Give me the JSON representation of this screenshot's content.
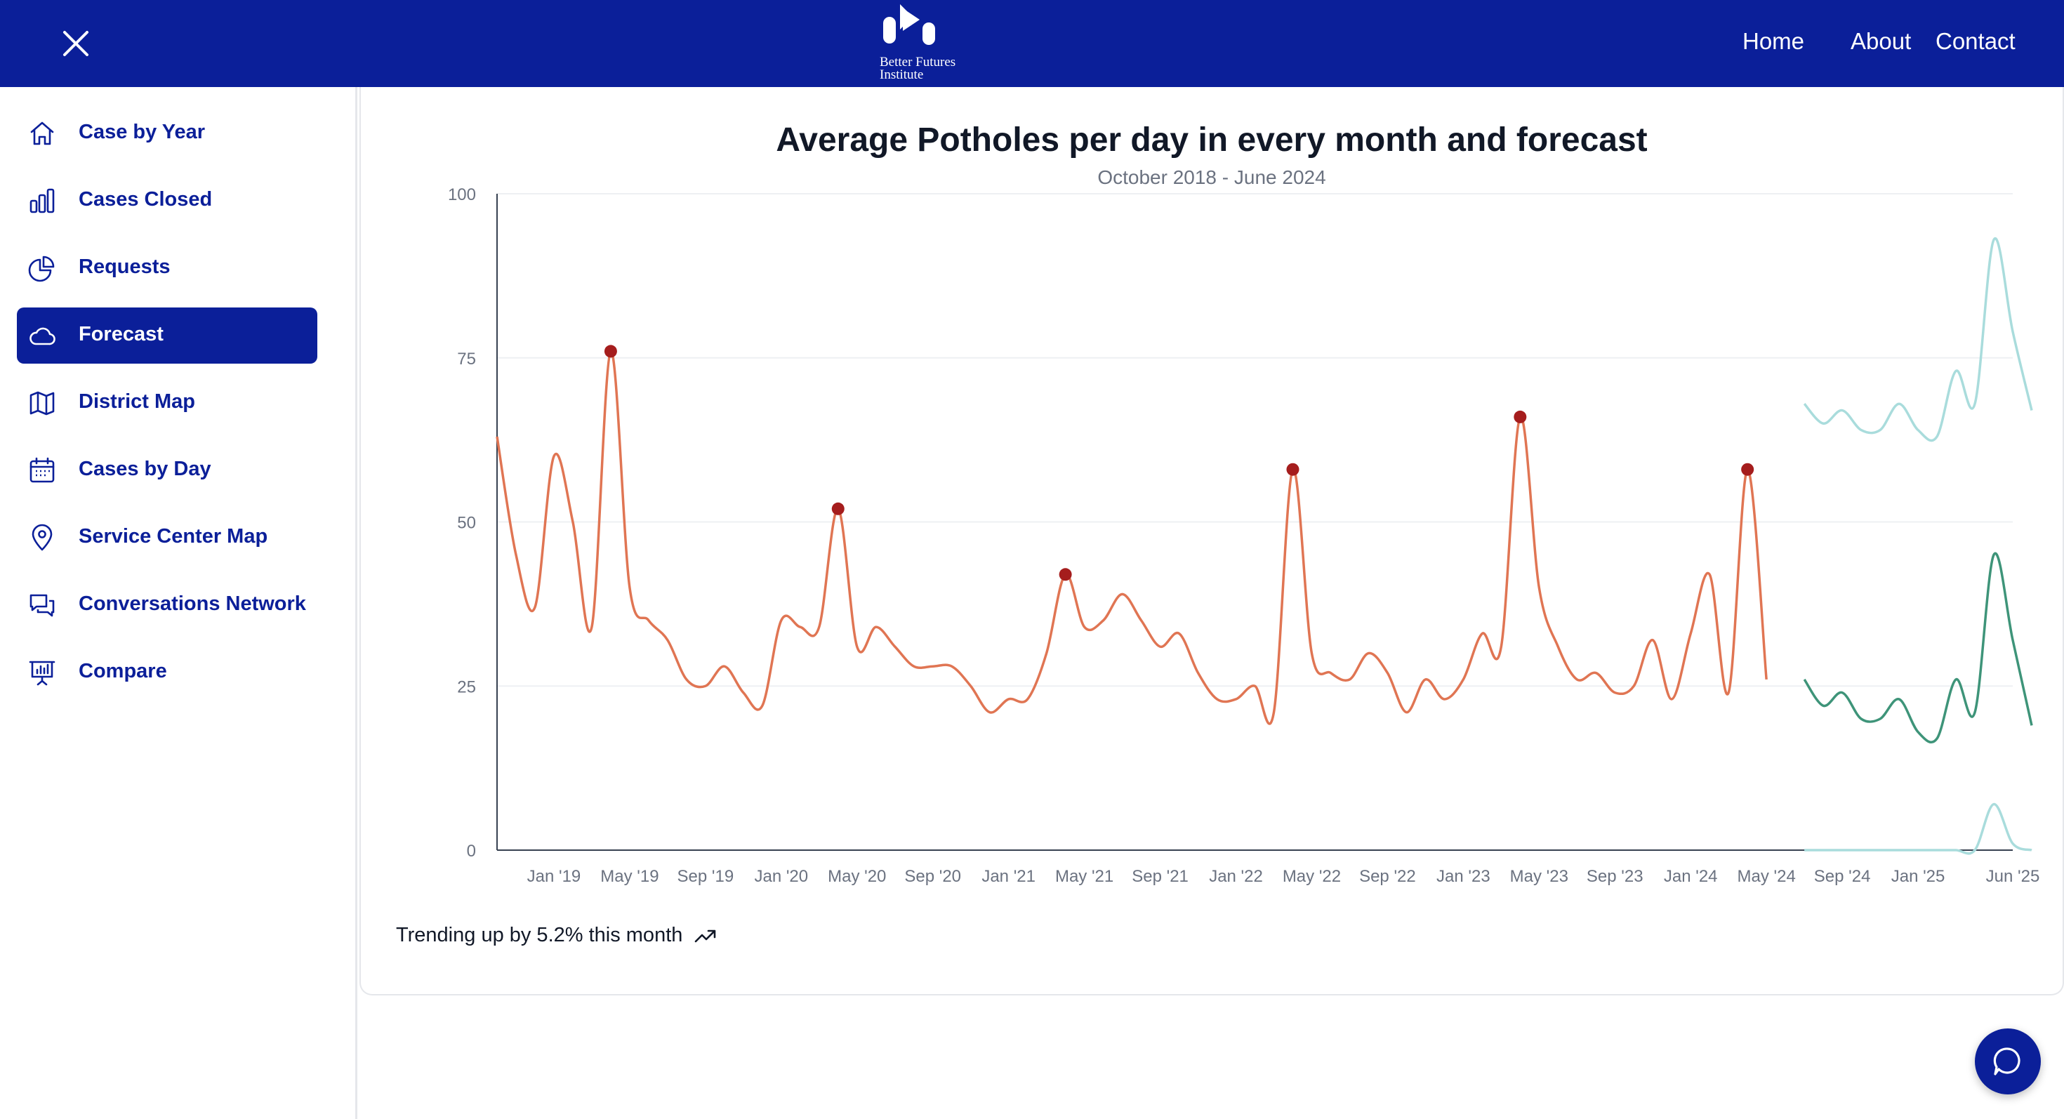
{
  "header": {
    "logo_text_line1": "Better Futures",
    "logo_text_line2": "Institute",
    "nav": [
      "Home",
      "About",
      "Contact"
    ]
  },
  "sidebar": {
    "items": [
      {
        "label": "Case by Year",
        "icon": "home-icon"
      },
      {
        "label": "Cases Closed",
        "icon": "bar-chart-icon"
      },
      {
        "label": "Requests",
        "icon": "pie-chart-icon"
      },
      {
        "label": "Forecast",
        "icon": "cloud-icon",
        "active": true
      },
      {
        "label": "District Map",
        "icon": "map-icon"
      },
      {
        "label": "Cases by Day",
        "icon": "calendar-icon"
      },
      {
        "label": "Service Center Map",
        "icon": "map-pin-icon"
      },
      {
        "label": "Conversations Network",
        "icon": "chat-bubbles-icon"
      },
      {
        "label": "Compare",
        "icon": "presentation-chart-icon"
      }
    ]
  },
  "colors": {
    "brand": "#0b1f99",
    "actual_line": "#e07553",
    "peak_marker": "#a51d1d",
    "forecast_upper": "#a9dcdc",
    "forecast_main": "#3e9479"
  },
  "trend_text": "Trending up by 5.2% this month",
  "chart_data": {
    "type": "line",
    "title": "Average Potholes per day in every month and forecast",
    "subtitle": "October 2018 - June 2024",
    "ylim": [
      0,
      100
    ],
    "yticks": [
      0,
      25,
      50,
      75,
      100
    ],
    "grid": true,
    "x_ticks": [
      "Jan '19",
      "May '19",
      "Sep '19",
      "Jan '20",
      "May '20",
      "Sep '20",
      "Jan '21",
      "May '21",
      "Sep '21",
      "Jan '22",
      "May '22",
      "Sep '22",
      "Jan '23",
      "May '23",
      "Sep '23",
      "Jan '24",
      "May '24",
      "Sep '24",
      "Jan '25",
      "Jun '25"
    ],
    "x_start": "2018-10",
    "series": [
      {
        "role": "actual",
        "values": [
          63,
          45,
          37,
          60,
          50,
          34,
          76,
          40,
          35,
          32,
          26,
          25,
          28,
          24,
          22,
          35,
          34,
          34,
          52,
          31,
          34,
          31,
          28,
          28,
          28,
          25,
          21,
          23,
          23,
          30,
          42,
          34,
          35,
          39,
          35,
          31,
          33,
          27,
          23,
          23,
          25,
          21,
          58,
          30,
          27,
          26,
          30,
          27,
          21,
          26,
          23,
          26,
          33,
          31,
          66,
          40,
          31,
          26,
          27,
          24,
          25,
          32,
          23,
          33,
          42,
          24,
          58,
          26
        ],
        "peaks": [
          6,
          18,
          30,
          42,
          54,
          66
        ]
      },
      {
        "role": "forecast-upper",
        "values": [
          68,
          65,
          67,
          64,
          64,
          68,
          64,
          63,
          73,
          68,
          93,
          79,
          67
        ]
      },
      {
        "role": "forecast",
        "values": [
          26,
          22,
          24,
          20,
          20,
          23,
          18,
          17,
          26,
          21,
          45,
          32,
          19
        ]
      },
      {
        "role": "forecast-lower",
        "values": [
          0,
          0,
          0,
          0,
          0,
          0,
          0,
          0,
          0,
          0,
          7,
          1,
          0
        ]
      }
    ]
  }
}
